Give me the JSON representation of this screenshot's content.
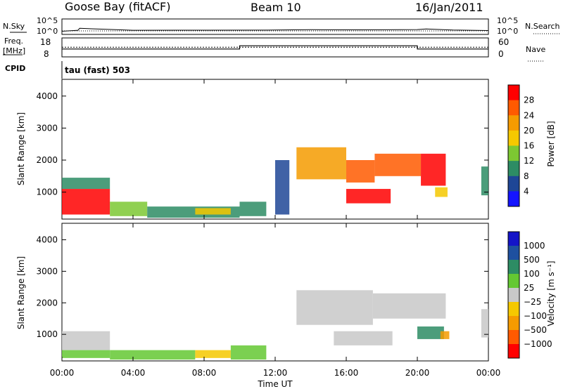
{
  "header": {
    "station": "Goose Bay (fitACF)",
    "beam": "Beam 10",
    "date": "16/Jan/2011"
  },
  "top_panels": {
    "nsky_label": "N.Sky",
    "nsky_ticks": [
      "10^5",
      "10^0"
    ],
    "nsearch_label": "N.Search",
    "nsearch_ticks": [
      "10^5",
      "10^0"
    ],
    "freq_label_line1": "Freq.",
    "freq_label_line2": "[MHz]",
    "freq_ticks": [
      "18",
      "8"
    ],
    "nave_label": "Nave",
    "nave_ticks": [
      "60",
      "0"
    ],
    "cpid_label": "CPID",
    "cpid_value": "tau (fast) 503"
  },
  "axes": {
    "ylabel": "Slant Range [km]",
    "y_ticks": [
      "4000",
      "3000",
      "2000",
      "1000"
    ],
    "x_ticks": [
      "00:00",
      "04:00",
      "08:00",
      "12:00",
      "16:00",
      "20:00",
      "00:00"
    ],
    "xlabel": "Time UT"
  },
  "power_scale": {
    "label": "Power [dB]",
    "ticks": [
      "28",
      "24",
      "20",
      "16",
      "12",
      "8",
      "4"
    ],
    "colors": [
      "#ff0000",
      "#ff5a00",
      "#f59b00",
      "#f5c800",
      "#7dc832",
      "#2d8c64",
      "#1e4696",
      "#1414ff"
    ]
  },
  "velocity_scale": {
    "label": "Velocity [m s⁻¹]",
    "ticks": [
      "1000",
      "500",
      "100",
      "25",
      "−25",
      "−100",
      "−500",
      "−1000"
    ],
    "colors": [
      "#1414c8",
      "#1e50a0",
      "#2d8c64",
      "#64c832",
      "#c8c8c8",
      "#f5c800",
      "#f59b00",
      "#ff5a00",
      "#ff0000"
    ]
  },
  "chart_data": [
    {
      "type": "line",
      "title": "N.Sky / N.Search",
      "y_scale": "log",
      "ylim": [
        1,
        100000
      ],
      "x_range_hours": [
        0,
        24
      ],
      "series": [
        {
          "name": "N.Sky",
          "x": [
            0,
            0.5,
            0.9,
            1.0,
            4,
            8,
            12,
            14,
            16,
            18,
            20,
            20.5,
            22,
            24
          ],
          "values": [
            3,
            5,
            8,
            60,
            8,
            9,
            10,
            15,
            12,
            13,
            16,
            30,
            10,
            6
          ]
        },
        {
          "name": "N.Search",
          "x": [
            0,
            24
          ],
          "values": [
            1,
            1
          ]
        }
      ]
    },
    {
      "type": "line",
      "title": "Freq. / Nave",
      "series": [
        {
          "name": "Freq. [MHz]",
          "x": [
            0,
            10,
            10,
            20,
            20,
            24
          ],
          "values": [
            12,
            12,
            14,
            14,
            12,
            12
          ]
        },
        {
          "name": "Nave",
          "x": [
            0,
            24
          ],
          "values": [
            14,
            14
          ]
        }
      ],
      "ylim_left": [
        8,
        18
      ],
      "ylim_right": [
        0,
        60
      ]
    },
    {
      "type": "heatmap",
      "title": "Power [dB]",
      "xlabel": "Time UT",
      "ylabel": "Slant Range [km]",
      "xlim": [
        0,
        24
      ],
      "ylim": [
        180,
        4500
      ],
      "color_bins_db": [
        4,
        8,
        12,
        16,
        20,
        24,
        28
      ],
      "regions": [
        {
          "t0": 0.0,
          "t1": 2.7,
          "r0": 300,
          "r1": 1100,
          "level_db": 28
        },
        {
          "t0": 0.0,
          "t1": 2.7,
          "r0": 1100,
          "r1": 1450,
          "level_db": 8
        },
        {
          "t0": 2.7,
          "t1": 4.8,
          "r0": 250,
          "r1": 700,
          "level_db": 12
        },
        {
          "t0": 4.8,
          "t1": 10.0,
          "r0": 200,
          "r1": 550,
          "level_db": 8
        },
        {
          "t0": 7.5,
          "t1": 9.5,
          "r0": 300,
          "r1": 500,
          "level_db": 16
        },
        {
          "t0": 10.0,
          "t1": 11.5,
          "r0": 250,
          "r1": 700,
          "level_db": 8
        },
        {
          "t0": 12.0,
          "t1": 12.8,
          "r0": 300,
          "r1": 2000,
          "level_db": 4
        },
        {
          "t0": 13.2,
          "t1": 16.0,
          "r0": 1400,
          "r1": 2400,
          "level_db": 20
        },
        {
          "t0": 16.0,
          "t1": 17.6,
          "r0": 1300,
          "r1": 2000,
          "level_db": 24
        },
        {
          "t0": 16.0,
          "t1": 18.5,
          "r0": 650,
          "r1": 1100,
          "level_db": 28
        },
        {
          "t0": 17.6,
          "t1": 20.2,
          "r0": 1500,
          "r1": 2200,
          "level_db": 24
        },
        {
          "t0": 20.2,
          "t1": 21.6,
          "r0": 1200,
          "r1": 2200,
          "level_db": 28
        },
        {
          "t0": 21.0,
          "t1": 21.7,
          "r0": 850,
          "r1": 1150,
          "level_db": 16
        },
        {
          "t0": 23.6,
          "t1": 24.0,
          "r0": 900,
          "r1": 1800,
          "level_db": 8
        }
      ]
    },
    {
      "type": "heatmap",
      "title": "Velocity [m s⁻¹]",
      "xlabel": "Time UT",
      "ylabel": "Slant Range [km]",
      "xlim": [
        0,
        24
      ],
      "ylim": [
        180,
        4500
      ],
      "color_bins_ms": [
        -1000,
        -500,
        -100,
        -25,
        25,
        100,
        500,
        1000
      ],
      "regions": [
        {
          "t0": 0.0,
          "t1": 2.7,
          "r0": 500,
          "r1": 1100,
          "level_ms": 0
        },
        {
          "t0": 0.0,
          "t1": 2.7,
          "r0": 250,
          "r1": 500,
          "level_ms": 50
        },
        {
          "t0": 2.7,
          "t1": 7.5,
          "r0": 200,
          "r1": 500,
          "level_ms": 60
        },
        {
          "t0": 7.5,
          "t1": 9.5,
          "r0": 250,
          "r1": 500,
          "level_ms": -60
        },
        {
          "t0": 9.5,
          "t1": 11.5,
          "r0": 200,
          "r1": 650,
          "level_ms": 40
        },
        {
          "t0": 13.2,
          "t1": 17.5,
          "r0": 1300,
          "r1": 2400,
          "level_ms": 0
        },
        {
          "t0": 15.3,
          "t1": 18.6,
          "r0": 650,
          "r1": 1100,
          "level_ms": 0
        },
        {
          "t0": 17.5,
          "t1": 21.6,
          "r0": 1500,
          "r1": 2300,
          "level_ms": 0
        },
        {
          "t0": 20.0,
          "t1": 21.5,
          "r0": 850,
          "r1": 1250,
          "level_ms": 200
        },
        {
          "t0": 21.3,
          "t1": 21.8,
          "r0": 850,
          "r1": 1100,
          "level_ms": -150
        },
        {
          "t0": 23.6,
          "t1": 24.0,
          "r0": 900,
          "r1": 1800,
          "level_ms": 0
        }
      ]
    }
  ]
}
